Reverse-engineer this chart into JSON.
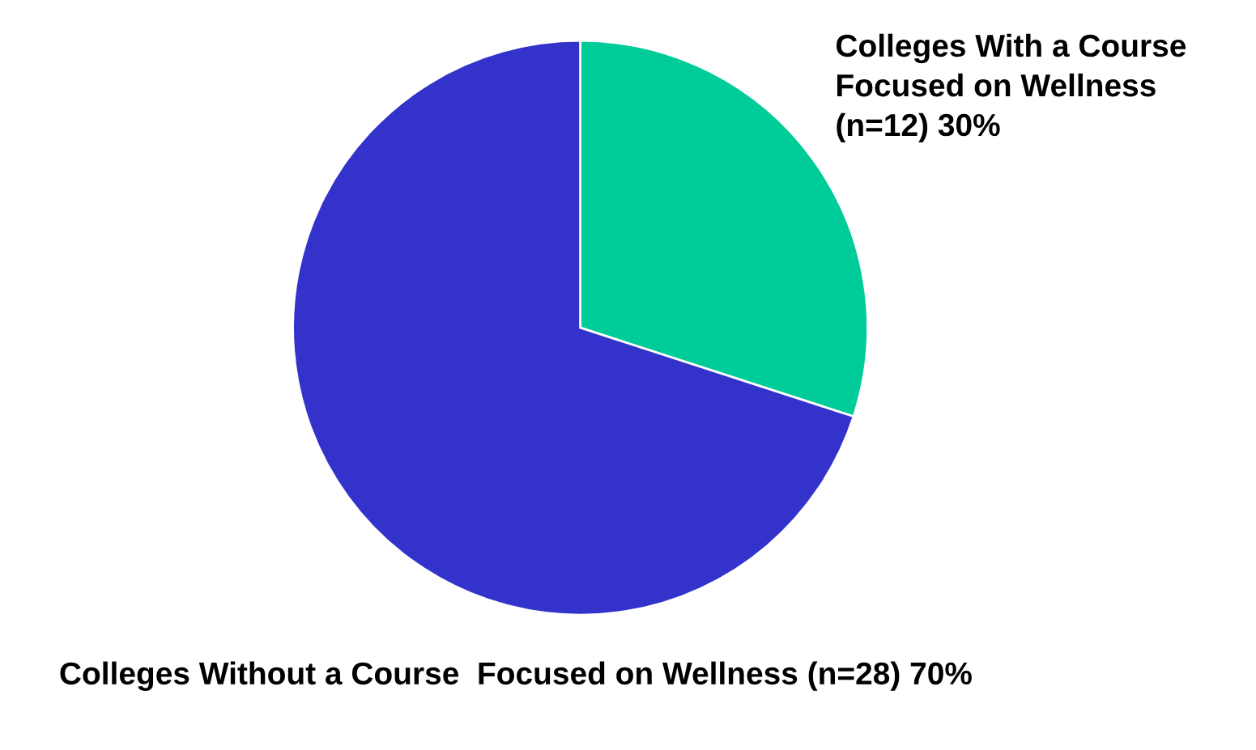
{
  "chart_data": {
    "type": "pie",
    "categories": [
      "Colleges With a Course Focused on Wellness (n=12) 30%",
      "Colleges Without a Course  Focused on Wellness (n=28) 70%"
    ],
    "values": [
      30,
      70
    ],
    "colors": [
      "#00cc99",
      "#3333cc"
    ]
  }
}
